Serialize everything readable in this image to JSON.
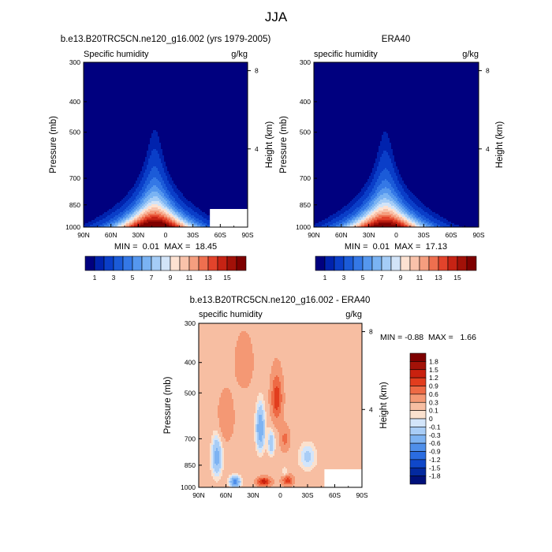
{
  "page": {
    "title": "JJA"
  },
  "chart_data": [
    {
      "type": "contour",
      "title": "b.e13.B20TRC5CN.ne120_g16.002 (yrs 1979-2005)",
      "left_label": "Specific humidity",
      "right_label": "g/kg",
      "xlabel": "",
      "ylabel": "Pressure (mb)",
      "y2label": "Height (km)",
      "x_ticks": [
        "90N",
        "60N",
        "30N",
        "0",
        "30S",
        "60S",
        "90S"
      ],
      "y_ticks": [
        "300",
        "400",
        "500",
        "700",
        "850",
        "1000"
      ],
      "y2_ticks": [
        "8",
        "4"
      ],
      "xlim": [
        90,
        -90
      ],
      "ylim": [
        1000,
        300
      ],
      "y_scale": "log",
      "min_max_label": "MIN =  0.01  MAX =  18.45",
      "min": 0.01,
      "max": 18.45,
      "peak_lat": 12,
      "colorbar_labels": [
        "1",
        "3",
        "5",
        "7",
        "9",
        "11",
        "13",
        "15"
      ]
    },
    {
      "type": "contour",
      "title": "ERA40",
      "left_label": "specific humidity",
      "right_label": "g/kg",
      "xlabel": "",
      "ylabel": "Pressure (mb)",
      "y2label": "Height (km)",
      "x_ticks": [
        "90N",
        "60N",
        "30N",
        "0",
        "30S",
        "60S",
        "90S"
      ],
      "y_ticks": [
        "300",
        "400",
        "500",
        "700",
        "850",
        "1000"
      ],
      "y2_ticks": [
        "8",
        "4"
      ],
      "xlim": [
        90,
        -90
      ],
      "ylim": [
        1000,
        300
      ],
      "y_scale": "log",
      "min_max_label": "MIN =  0.01  MAX =  17.13",
      "min": 0.01,
      "max": 17.13,
      "peak_lat": 12,
      "colorbar_labels": [
        "1",
        "3",
        "5",
        "7",
        "9",
        "11",
        "13",
        "15"
      ]
    },
    {
      "type": "contour",
      "title": "b.e13.B20TRC5CN.ne120_g16.002 - ERA40",
      "left_label": "specific humidity",
      "right_label": "g/kg",
      "xlabel": "",
      "ylabel": "Pressure (mb)",
      "y2label": "Height (km)",
      "x_ticks": [
        "90N",
        "60N",
        "30N",
        "0",
        "30S",
        "60S",
        "90S"
      ],
      "y_ticks": [
        "300",
        "400",
        "500",
        "700",
        "850",
        "1000"
      ],
      "y2_ticks": [
        "8",
        "4"
      ],
      "xlim": [
        90,
        -90
      ],
      "ylim": [
        1000,
        300
      ],
      "y_scale": "log",
      "min_max_label": "MIN = -0.88  MAX =   1.66",
      "min": -0.88,
      "max": 1.66,
      "colorbar_labels": [
        "1.8",
        "1.5",
        "1.2",
        "0.9",
        "0.6",
        "0.3",
        "0.1",
        "0",
        "-0.1",
        "-0.3",
        "-0.6",
        "-0.9",
        "-1.2",
        "-1.5",
        "-1.8"
      ]
    }
  ],
  "colors": {
    "seq": [
      "#00007f",
      "#0022ad",
      "#0a3ec8",
      "#1b5bd8",
      "#3478e6",
      "#5597ee",
      "#7ab3f3",
      "#a5cdf7",
      "#d2e4f8",
      "#fde2d2",
      "#f9c2aa",
      "#f59e7f",
      "#ee6f4f",
      "#e2432b",
      "#c62314",
      "#a21108",
      "#7e0000"
    ],
    "diff": [
      "#7e0000",
      "#a31208",
      "#c9210f",
      "#e23d1e",
      "#ee6a45",
      "#f49874",
      "#f7bea2",
      "#fbe1ce",
      "#d3e5fa",
      "#a9cdf6",
      "#7eb3f2",
      "#4f8fea",
      "#2a6ce0",
      "#0f47c9",
      "#03299f",
      "#00107a"
    ]
  }
}
